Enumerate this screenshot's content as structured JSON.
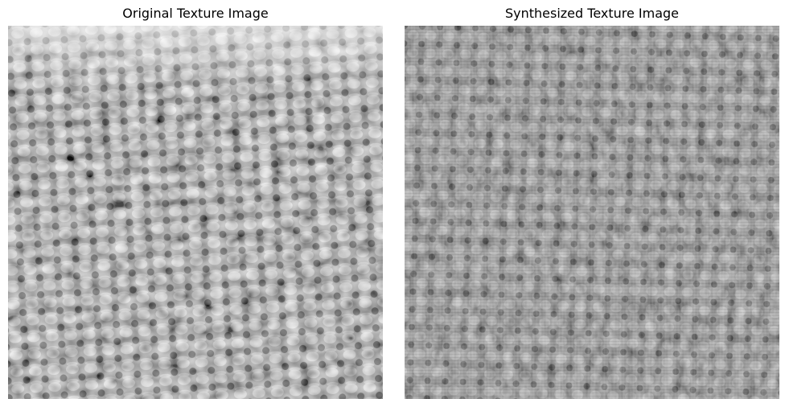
{
  "figure": {
    "panels": [
      {
        "title": "Original Texture Image",
        "image": "grayscale woven burlap fabric texture photograph",
        "colors": {
          "dark": "#181818",
          "mid": "#8a8a8a",
          "light": "#e6e6e6"
        }
      },
      {
        "title": "Synthesized Texture Image",
        "image": "grayscale synthesized weave texture with lower contrast and faint grid artifacts",
        "colors": {
          "dark": "#2a2a2a",
          "mid": "#7c7c7c",
          "light": "#bdbdbd"
        }
      }
    ]
  }
}
